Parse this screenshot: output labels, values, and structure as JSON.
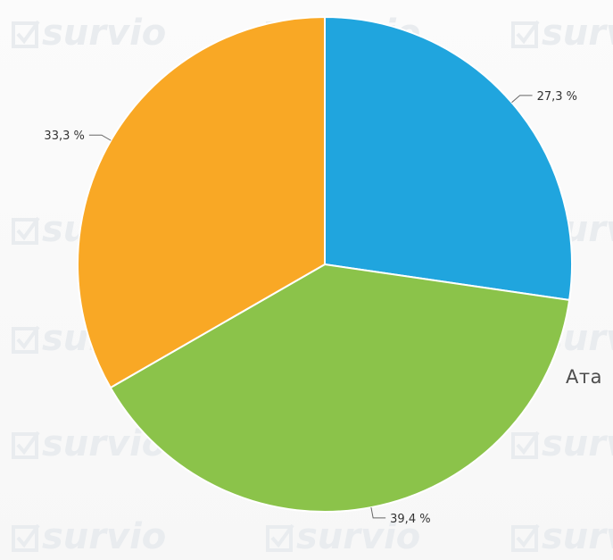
{
  "chart_data": {
    "type": "pie",
    "slices": [
      {
        "label_text": "27,3 %",
        "value": 27.3,
        "color": "#20a5de"
      },
      {
        "label_text": "39,4 %",
        "value": 39.4,
        "color": "#8bc34a"
      },
      {
        "label_text": "33,3 %",
        "value": 33.3,
        "color": "#f9a825"
      }
    ]
  },
  "side_text": "Ата",
  "watermark": {
    "text": "survio",
    "color": "#e9ecef"
  }
}
